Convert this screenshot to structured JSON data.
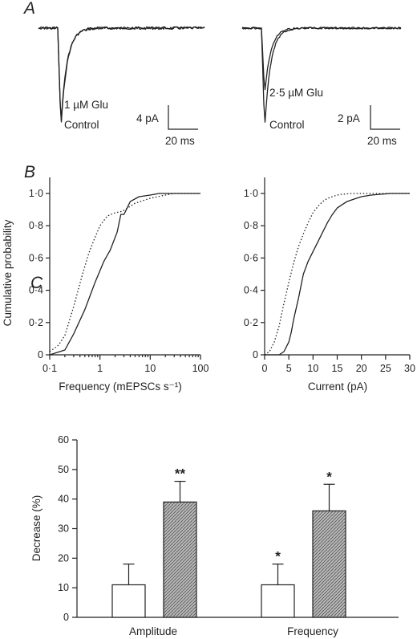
{
  "panel_labels": {
    "a": "A",
    "b": "B",
    "c": "C"
  },
  "chart_data": [
    {
      "type": "line",
      "panel": "A",
      "description_labels": {
        "left_drug": "1 µM Glu",
        "left_control": "Control",
        "left_scale_y": "4 pA",
        "left_scale_x": "20 ms",
        "right_drug": "2·5 µM Glu",
        "right_control": "Control",
        "right_scale_y": "2 pA",
        "right_scale_x": "20 ms"
      },
      "series": [
        {
          "name": "Control",
          "relative_peak": [
            1.0,
            1.0
          ]
        },
        {
          "name": "Glu",
          "relative_peak": [
            0.97,
            0.66
          ]
        }
      ]
    },
    {
      "type": "line",
      "panel": "B-left",
      "ylabel": "Cumulative probability",
      "xlabel": "Frequency (mEPSCs s⁻¹)",
      "x_scale": "log",
      "xlim": [
        0.1,
        100
      ],
      "ylim": [
        0,
        1
      ],
      "x_ticks": [
        "0·1",
        "1",
        "10",
        "100"
      ],
      "y_ticks": [
        "0",
        "0·2",
        "0·4",
        "0·6",
        "0·8",
        "1·0"
      ],
      "series": [
        {
          "style": "solid",
          "x": [
            0.1,
            0.2,
            0.3,
            0.5,
            0.8,
            1.2,
            1.6,
            2.2,
            2.6,
            3.0,
            4.0,
            6.0,
            10.0,
            15.0,
            25.0,
            100.0
          ],
          "y": [
            0.0,
            0.03,
            0.13,
            0.28,
            0.45,
            0.58,
            0.65,
            0.76,
            0.87,
            0.87,
            0.95,
            0.98,
            0.99,
            1.0,
            1.0,
            1.0
          ]
        },
        {
          "style": "dotted",
          "x": [
            0.1,
            0.15,
            0.2,
            0.3,
            0.45,
            0.6,
            0.8,
            1.0,
            1.4,
            2.0,
            2.8,
            5.0,
            10.0,
            20.0,
            30.0,
            100.0
          ],
          "y": [
            0.02,
            0.06,
            0.12,
            0.3,
            0.5,
            0.63,
            0.73,
            0.8,
            0.86,
            0.88,
            0.89,
            0.94,
            0.97,
            0.99,
            1.0,
            1.0
          ]
        }
      ]
    },
    {
      "type": "line",
      "panel": "B-right",
      "xlabel": "Current (pA)",
      "xlim": [
        0,
        30
      ],
      "ylim": [
        0,
        1
      ],
      "x_ticks": [
        "0",
        "5",
        "10",
        "15",
        "20",
        "25",
        "30"
      ],
      "y_ticks": [
        "0",
        "0·2",
        "0·4",
        "0·6",
        "0·8",
        "1·0"
      ],
      "series": [
        {
          "style": "solid",
          "x": [
            0,
            3,
            4,
            5,
            5.5,
            6,
            7,
            8,
            9,
            10,
            11,
            12,
            13,
            14,
            15,
            16,
            17,
            18,
            20,
            22,
            24,
            26,
            28,
            30
          ],
          "y": [
            0,
            0,
            0.02,
            0.08,
            0.14,
            0.22,
            0.35,
            0.5,
            0.58,
            0.64,
            0.7,
            0.76,
            0.82,
            0.87,
            0.91,
            0.93,
            0.95,
            0.96,
            0.98,
            0.99,
            0.995,
            1.0,
            1.0,
            1.0
          ]
        },
        {
          "style": "dotted",
          "x": [
            0,
            1,
            2,
            3,
            4,
            5,
            6,
            7,
            8,
            9,
            10,
            11,
            12,
            13,
            14,
            15,
            16,
            18,
            20,
            25,
            30
          ],
          "y": [
            0,
            0.02,
            0.08,
            0.18,
            0.32,
            0.45,
            0.57,
            0.67,
            0.75,
            0.82,
            0.88,
            0.92,
            0.95,
            0.97,
            0.98,
            0.99,
            0.995,
            1.0,
            1.0,
            1.0,
            1.0
          ]
        }
      ]
    },
    {
      "type": "bar",
      "panel": "C",
      "ylabel": "Decrease (%)",
      "ylim": [
        0,
        60
      ],
      "y_ticks": [
        "0",
        "10",
        "20",
        "30",
        "40",
        "50",
        "60"
      ],
      "categories": [
        "Amplitude",
        "Frequency"
      ],
      "series": [
        {
          "fill": "white",
          "values": [
            11,
            11
          ],
          "errors": [
            7,
            7
          ],
          "significance": [
            "",
            "*"
          ]
        },
        {
          "fill": "hatched-grey",
          "values": [
            39,
            36
          ],
          "errors": [
            7,
            9
          ],
          "significance": [
            "**",
            "*"
          ]
        }
      ]
    }
  ]
}
